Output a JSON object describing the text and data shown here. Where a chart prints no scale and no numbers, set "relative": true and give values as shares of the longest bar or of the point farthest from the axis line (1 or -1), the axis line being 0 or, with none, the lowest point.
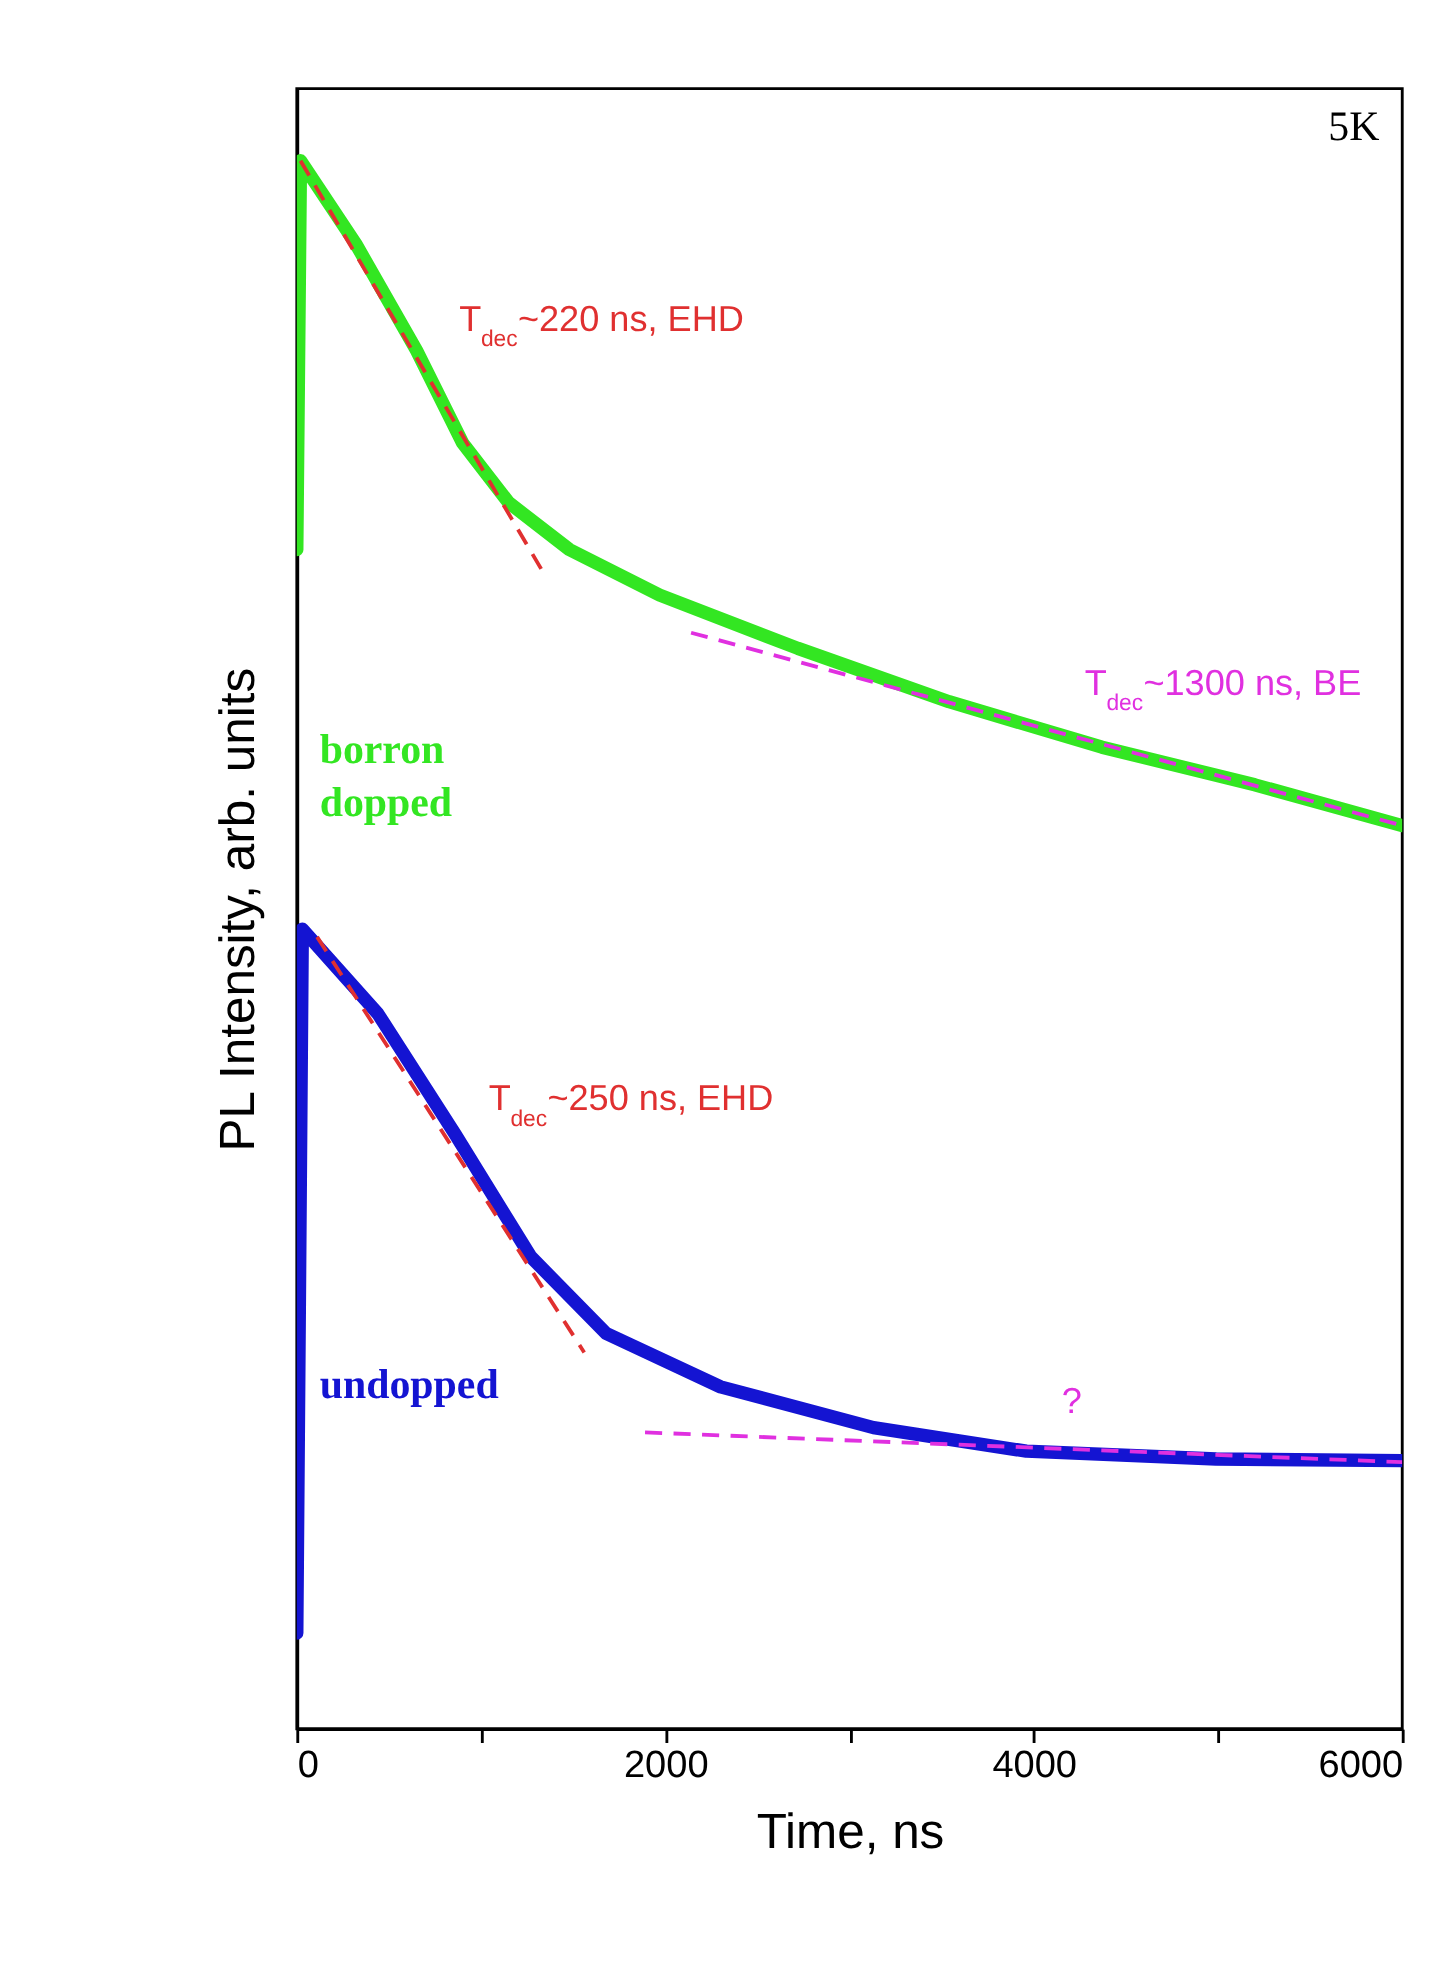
{
  "chart_data": {
    "type": "line",
    "relative": true,
    "xlabel": "Time, ns",
    "ylabel": "PL Intensity, arb. units",
    "xlim": [
      0,
      6000
    ],
    "xticks": [
      0,
      {
        "value": 1000,
        "label": null
      },
      2000,
      {
        "value": 3000,
        "label": null
      },
      4000,
      {
        "value": 5000,
        "label": null
      },
      6000
    ],
    "tick_labels": "x",
    "grid": false,
    "marker": "none",
    "series": [
      {
        "name": "borron dopped",
        "color": "#33e622",
        "line_style": "solid",
        "x": [
          0,
          20,
          320,
          650,
          900,
          1150,
          1480,
          1970,
          2720,
          3540,
          4370,
          5200,
          6000
        ],
        "values": [
          0.752,
          1.0,
          0.947,
          0.879,
          0.82,
          0.782,
          0.752,
          0.723,
          0.689,
          0.655,
          0.626,
          0.602,
          0.576
        ]
      },
      {
        "name": "undopped",
        "color": "#1414d2",
        "line_style": "solid",
        "x": [
          0,
          30,
          440,
          860,
          1270,
          1680,
          2300,
          3130,
          3960,
          4990,
          6000
        ],
        "values": [
          0.061,
          0.51,
          0.456,
          0.379,
          0.301,
          0.252,
          0.218,
          0.192,
          0.177,
          0.172,
          0.171
        ]
      },
      {
        "type": "line",
        "color": "#e03030",
        "line_style": "dashed",
        "x": [
          20,
          1330
        ],
        "values": [
          1.0,
          0.739
        ]
      },
      {
        "type": "line",
        "color": "#e030e0",
        "line_style": "dashed",
        "x": [
          2140,
          6000
        ],
        "values": [
          0.699,
          0.576
        ]
      },
      {
        "type": "line",
        "color": "#e03030",
        "line_style": "dashed",
        "x": [
          110,
          1560
        ],
        "values": [
          0.505,
          0.24
        ]
      },
      {
        "type": "line",
        "color": "#e030e0",
        "line_style": "dashed",
        "x": [
          1890,
          6000
        ],
        "values": [
          0.189,
          0.17
        ]
      }
    ],
    "annotations": [
      "T$_{dec}$~220 ns, EHD",
      "T$_{dec}$~1300 ns, BE",
      "T$_{dec}$~250 ns, EHD",
      "?",
      "5K"
    ]
  }
}
